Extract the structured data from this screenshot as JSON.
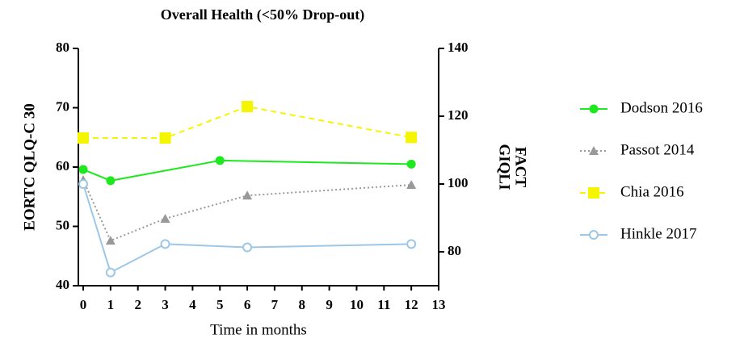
{
  "chart_data": {
    "type": "line",
    "title": "Overall Health (<50% Drop-out)",
    "xlabel": "Time in months",
    "ylabel": "EORTC QLQ-C 30",
    "y2label": [
      "FACT",
      "GIQLI"
    ],
    "xlim": [
      0,
      13
    ],
    "xticks": [
      0,
      1,
      2,
      3,
      4,
      5,
      6,
      7,
      8,
      9,
      10,
      11,
      12,
      13
    ],
    "ylim": [
      40,
      80
    ],
    "yticks": [
      40,
      50,
      60,
      70,
      80
    ],
    "y2lim": [
      70,
      140
    ],
    "y2ticks": [
      80,
      100,
      120,
      140
    ],
    "legend": "right",
    "series": [
      {
        "name": "Dodson 2016",
        "color": "#1ee81e",
        "marker": "circle",
        "dash": "solid",
        "x": [
          0,
          1,
          5,
          12
        ],
        "values": [
          59.6,
          57.7,
          61.1,
          60.5
        ]
      },
      {
        "name": "Passot 2014",
        "color": "#999999",
        "marker": "triangle",
        "dash": "dotted",
        "x": [
          0,
          1,
          3,
          6,
          12
        ],
        "values": [
          57.8,
          47.6,
          51.3,
          55.2,
          57
        ]
      },
      {
        "name": "Chia 2016",
        "color": "#f5f500",
        "marker": "square",
        "dash": "dashed",
        "x": [
          0,
          3,
          6,
          12
        ],
        "values": [
          64.9,
          64.9,
          70.2,
          65
        ]
      },
      {
        "name": "Hinkle 2017",
        "color": "#9cc7e6",
        "marker": "open-circle",
        "dash": "solid",
        "axis": "y2",
        "x": [
          0,
          1,
          3,
          6,
          12
        ],
        "values": [
          100,
          73.9,
          82.3,
          81.3,
          82.3
        ]
      }
    ]
  }
}
